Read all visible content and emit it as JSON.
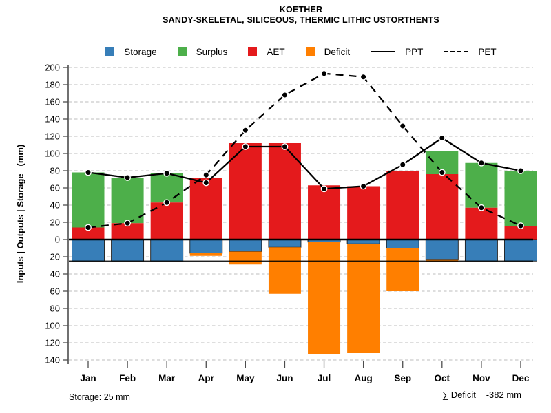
{
  "title": {
    "line1": "KOETHER",
    "line2": "SANDY-SKELETAL, SILICEOUS, THERMIC LITHIC USTORTHENTS"
  },
  "legend": {
    "items": [
      {
        "label": "Storage",
        "swatch": "square",
        "color_key": "storage"
      },
      {
        "label": "Surplus",
        "swatch": "square",
        "color_key": "surplus"
      },
      {
        "label": "AET",
        "swatch": "square",
        "color_key": "aet"
      },
      {
        "label": "Deficit",
        "swatch": "square",
        "color_key": "deficit"
      },
      {
        "label": "PPT",
        "swatch": "solid-line"
      },
      {
        "label": "PET",
        "swatch": "dashed-line"
      }
    ]
  },
  "axes": {
    "y_label": "Inputs | Outputs | Storage   (mm)",
    "y_tick_step": 20,
    "ylim_low": -140,
    "ylim_high": 200,
    "y_tick_labels_are_absolute": true
  },
  "chart_data": {
    "type": "bar",
    "subtype": "monthly water balance: stacked bars above/below zero + two lines",
    "title": "KOETHER",
    "subtitle": "SANDY-SKELETAL, SILICEOUS, THERMIC LITHIC USTORTHENTS",
    "xlabel": "",
    "ylabel": "Inputs | Outputs | Storage (mm)",
    "ylim": [
      -140,
      200
    ],
    "y_tick_step": 20,
    "grid": "horizontal dashed gridlines every 20 mm",
    "legend_position": "top",
    "categories": [
      "Jan",
      "Feb",
      "Mar",
      "Apr",
      "May",
      "Jun",
      "Jul",
      "Aug",
      "Sep",
      "Oct",
      "Nov",
      "Dec"
    ],
    "series": [
      {
        "name": "AET",
        "type": "bar-above-zero",
        "values": [
          14,
          19,
          43,
          72,
          112,
          112,
          63,
          62,
          80,
          76,
          37,
          16
        ]
      },
      {
        "name": "Surplus",
        "type": "bar-stacked-on-AET",
        "values": [
          64,
          53,
          34,
          0,
          0,
          0,
          0,
          0,
          0,
          27,
          52,
          64
        ]
      },
      {
        "name": "Storage",
        "type": "bar-below-zero",
        "values": [
          25,
          25,
          25,
          16,
          14,
          9,
          3,
          5,
          10,
          23,
          25,
          25
        ]
      },
      {
        "name": "Deficit",
        "type": "bar-stacked-below-storage",
        "values": [
          0,
          0,
          0,
          3,
          15,
          54,
          130,
          127,
          50,
          3,
          0,
          0
        ]
      },
      {
        "name": "PPT",
        "type": "line",
        "style": "solid",
        "marker": "filled-circle",
        "values": [
          78,
          72,
          77,
          66,
          108,
          108,
          59,
          62,
          87,
          118,
          89,
          80
        ]
      },
      {
        "name": "PET",
        "type": "line",
        "style": "dashed",
        "marker": "filled-circle",
        "values": [
          14,
          19,
          43,
          75,
          127,
          168,
          193,
          189,
          132,
          78,
          37,
          16
        ]
      }
    ],
    "reference_lines": [
      {
        "value": 0,
        "style": "thick solid black"
      },
      {
        "value": -25,
        "style": "thin solid black",
        "meaning": "maximum storage 25 mm"
      }
    ]
  },
  "annotations": {
    "storage_note": "Storage: 25 mm",
    "deficit_total_note": "∑ Deficit = -382 mm"
  },
  "colors": {
    "storage": "#377EB8",
    "surplus": "#4DAF4A",
    "aet": "#E41A1C",
    "deficit": "#FF7F00",
    "line": "#000000",
    "grid": "#C9C9C9",
    "axis": "#4D4D4D",
    "background": "#FFFFFF"
  }
}
